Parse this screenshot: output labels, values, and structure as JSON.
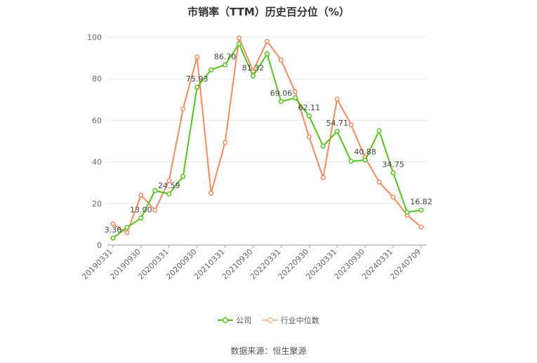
{
  "title": "市销率（TTM）历史百分位（%）",
  "source": "数据来源：恒生聚源",
  "colors": {
    "company": "#52c41a",
    "industry": "#f5895c",
    "grid": "#e8e8e8",
    "axis": "#999999",
    "text": "#666666"
  },
  "legend": {
    "company": "公司",
    "industry": "行业中位数"
  },
  "chart_data": {
    "type": "line",
    "title": "市销率（TTM）历史百分位（%）",
    "xlabel": "",
    "ylabel": "",
    "ylim": [
      0,
      100
    ],
    "yticks": [
      0,
      20,
      40,
      60,
      80,
      100
    ],
    "grid": true,
    "legend_position": "bottom",
    "x": [
      "20190331",
      "20190630",
      "20190930",
      "20191231",
      "20200331",
      "20200630",
      "20200930",
      "20201231",
      "20210331",
      "20210630",
      "20210930",
      "20211231",
      "20220331",
      "20220630",
      "20220930",
      "20221231",
      "20230331",
      "20230630",
      "20230930",
      "20231231",
      "20240331",
      "20240630",
      "20240709"
    ],
    "xtick_labels": [
      "20190331",
      "20190930",
      "20200331",
      "20200930",
      "20210331",
      "20210930",
      "20220331",
      "20220930",
      "20230331",
      "20230930",
      "20240331",
      "20240709"
    ],
    "series": [
      {
        "name": "公司",
        "values": [
          3.36,
          8.5,
          13.0,
          26.2,
          24.59,
          33.0,
          75.93,
          84.3,
          86.7,
          96.8,
          81.32,
          92.0,
          69.06,
          70.8,
          62.11,
          47.6,
          54.71,
          40.3,
          40.88,
          55.0,
          34.75,
          15.8,
          16.82
        ],
        "labels": {
          "0": "3.36",
          "2": "13.00",
          "4": "24.59",
          "6": "75.93",
          "8": "86.70",
          "10": "81.32",
          "12": "69.06",
          "14": "62.11",
          "16": "54.71",
          "18": "40.88",
          "20": "34.75",
          "22": "16.82"
        }
      },
      {
        "name": "行业中位数",
        "values": [
          10.2,
          6.0,
          24.0,
          16.8,
          31.0,
          65.5,
          90.5,
          24.9,
          49.3,
          99.6,
          83.8,
          98.0,
          89.0,
          73.8,
          52.1,
          32.4,
          70.2,
          57.8,
          42.0,
          30.3,
          23.0,
          14.4,
          8.7
        ]
      }
    ]
  }
}
